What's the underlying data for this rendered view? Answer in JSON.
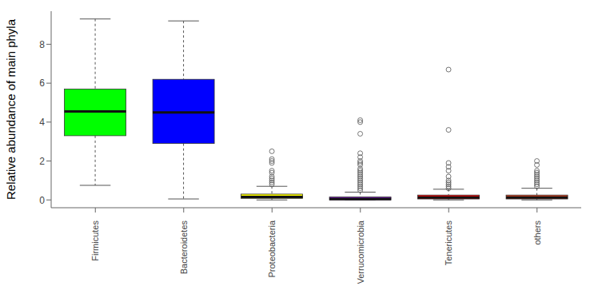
{
  "chart_data": {
    "type": "box",
    "ylabel": "Relative abundance of main phyla",
    "categories": [
      "Firmicutes",
      "Bacteroidetes",
      "Proteobacteria",
      "Verrucomicrobia",
      "Tenericutes",
      "others"
    ],
    "colors": [
      "#00ff00",
      "#0000ff",
      "#ffff00",
      "#a020f0",
      "#ff0000",
      "#e0401a"
    ],
    "min": [
      0.75,
      0.05,
      0,
      0,
      0,
      0
    ],
    "q1": [
      3.3,
      2.9,
      0.08,
      0.0,
      0.05,
      0.05
    ],
    "median": [
      4.55,
      4.5,
      0.15,
      0.05,
      0.12,
      0.12
    ],
    "q3": [
      5.7,
      6.2,
      0.3,
      0.15,
      0.25,
      0.25
    ],
    "max": [
      9.3,
      9.2,
      0.7,
      0.4,
      0.55,
      0.6
    ],
    "outliers": [
      [],
      [],
      [
        0.8,
        0.9,
        1.0,
        1.1,
        1.2,
        1.4,
        1.5,
        1.9,
        2.0,
        2.1,
        2.5
      ],
      [
        0.5,
        0.6,
        0.7,
        0.8,
        0.9,
        1.0,
        1.1,
        1.2,
        1.3,
        1.4,
        1.5,
        1.6,
        1.8,
        1.9,
        2.0,
        2.2,
        2.4,
        3.4,
        4.0,
        4.1
      ],
      [
        0.6,
        0.7,
        0.8,
        0.9,
        1.0,
        1.2,
        1.5,
        1.7,
        1.9,
        3.6,
        6.7
      ],
      [
        0.7,
        0.8,
        0.9,
        1.0,
        1.1,
        1.2,
        1.3,
        1.4,
        1.5,
        1.8,
        2.0
      ]
    ],
    "ylim": [
      -0.4,
      9.7
    ],
    "yticks": [
      0,
      2,
      4,
      6,
      8
    ]
  }
}
